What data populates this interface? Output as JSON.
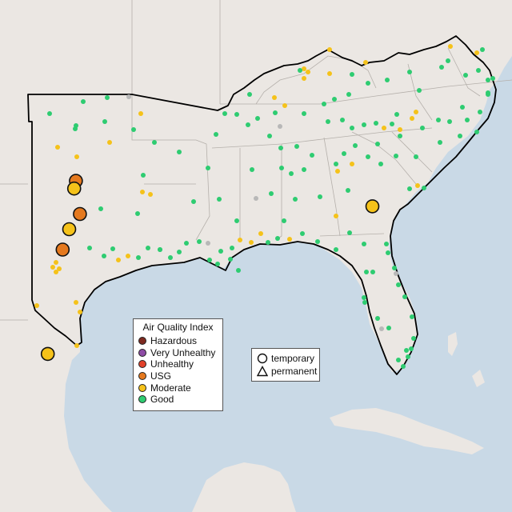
{
  "legend": {
    "title": "Air Quality Index",
    "categories": [
      {
        "label": "Hazardous",
        "color": "#7e2a20"
      },
      {
        "label": "Very Unhealthy",
        "color": "#8e4ca5"
      },
      {
        "label": "Unhealthy",
        "color": "#e2412a"
      },
      {
        "label": "USG",
        "color": "#e5791e"
      },
      {
        "label": "Moderate",
        "color": "#f5c21a"
      },
      {
        "label": "Good",
        "color": "#2ecc71"
      }
    ],
    "no_data_color": "#b8b8b8"
  },
  "shape_legend": {
    "temporary_label": "temporary",
    "permanent_label": "permanent"
  },
  "colors": {
    "ocean": "#c9d9e6",
    "land": "#ebe7e3",
    "smoke_outline": "#000000"
  },
  "sites": [
    {
      "aqi": "USG",
      "type": "temporary",
      "lon": -99.09,
      "lat": 33.1
    },
    {
      "aqi": "Moderate",
      "type": "temporary",
      "lon": -99.2,
      "lat": 32.8
    },
    {
      "aqi": "USG",
      "type": "temporary",
      "lon": -98.85,
      "lat": 31.8
    },
    {
      "aqi": "Moderate",
      "type": "temporary",
      "lon": -99.5,
      "lat": 31.2
    },
    {
      "aqi": "USG",
      "type": "temporary",
      "lon": -99.9,
      "lat": 30.4
    },
    {
      "aqi": "Moderate",
      "type": "temporary",
      "lon": -100.8,
      "lat": 26.3
    },
    {
      "aqi": "Moderate",
      "type": "temporary",
      "lon": -81.1,
      "lat": 32.1
    }
  ]
}
